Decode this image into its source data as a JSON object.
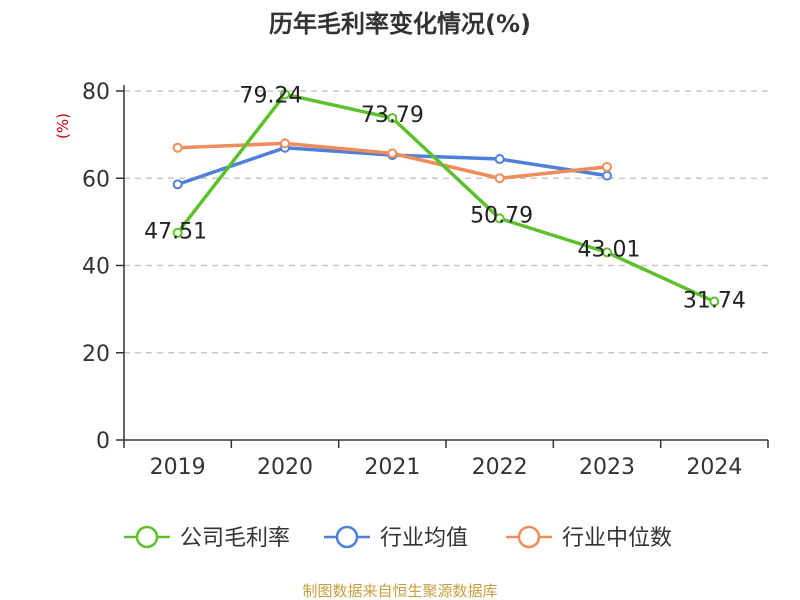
{
  "chart_data": {
    "type": "line",
    "title": "历年毛利率变化情况(%)",
    "ylabel": "(%)",
    "ylim": [
      0,
      80
    ],
    "yticks": [
      0,
      20,
      40,
      60,
      80
    ],
    "categories": [
      "2019",
      "2020",
      "2021",
      "2022",
      "2023",
      "2024"
    ],
    "grid": true,
    "legend_position": "bottom",
    "series": [
      {
        "name": "公司毛利率",
        "color": "#5cc12b",
        "values": [
          47.51,
          79.24,
          73.79,
          50.79,
          43.01,
          31.74
        ],
        "labels": [
          "47.51",
          "79.24",
          "73.79",
          "50.79",
          "43.01",
          "31.74"
        ]
      },
      {
        "name": "行业均值",
        "color": "#4e7fd9",
        "values": [
          58.6,
          67.0,
          65.3,
          64.4,
          60.6,
          null
        ]
      },
      {
        "name": "行业中位数",
        "color": "#f08c5a",
        "values": [
          67.0,
          68.0,
          65.7,
          60.0,
          62.6,
          null
        ]
      }
    ],
    "source": "制图数据来自恒生聚源数据库"
  }
}
